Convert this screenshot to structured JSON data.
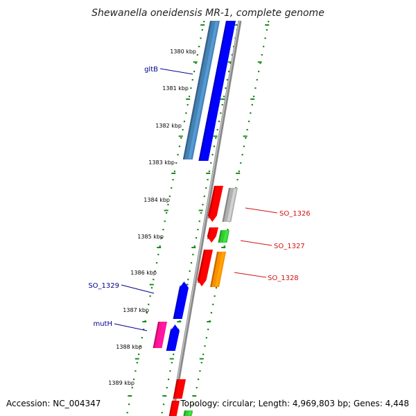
{
  "title": "Shewanella oneidensis MR-1, complete genome",
  "footer": {
    "accession": "Accession: NC_004347",
    "summary": "Topology: circular; Length: 4,969,803 bp; Genes: 4,448"
  },
  "colors": {
    "background": "#ffffff",
    "backbone": "#8a8a8a",
    "tick_dots": "#1f8a1f",
    "forward_label": "#00008b",
    "reverse_label": "#d01010"
  },
  "axis_labels": [
    "1380 kbp",
    "1381 kbp",
    "1382 kbp",
    "1383 kbp",
    "1384 kbp",
    "1385 kbp",
    "1386 kbp",
    "1387 kbp",
    "1388 kbp",
    "1389 kbp"
  ],
  "gene_labels": [
    {
      "name": "gltB",
      "strand": "forward",
      "color": "#00008b"
    },
    {
      "name": "SO_1326",
      "strand": "reverse",
      "color": "#d01010"
    },
    {
      "name": "SO_1327",
      "strand": "reverse",
      "color": "#d01010"
    },
    {
      "name": "SO_1328",
      "strand": "reverse",
      "color": "#d01010"
    },
    {
      "name": "SO_1329",
      "strand": "forward",
      "color": "#00008b"
    },
    {
      "name": "mutH",
      "strand": "forward",
      "color": "#00008b"
    }
  ],
  "features": [
    {
      "name": "gltB-steelblue",
      "color": "#4682b4"
    },
    {
      "name": "gltB-blue",
      "color": "#0000ff"
    },
    {
      "name": "SO_1326-red",
      "color": "#ff0000"
    },
    {
      "name": "SO_1326-grey",
      "color": "#b0b0b0"
    },
    {
      "name": "SO_1327-red",
      "color": "#ff0000"
    },
    {
      "name": "SO_1327-green",
      "color": "#33cc33"
    },
    {
      "name": "SO_1328-red",
      "color": "#ff0000"
    },
    {
      "name": "SO_1328-orange",
      "color": "#ff8c00"
    },
    {
      "name": "SO_1329-blue",
      "color": "#0000ff"
    },
    {
      "name": "mutH-magenta",
      "color": "#ff1493"
    },
    {
      "name": "mutH-blue",
      "color": "#0000ff"
    },
    {
      "name": "bottom-red-1",
      "color": "#ff0000"
    },
    {
      "name": "bottom-red-2",
      "color": "#ff0000"
    },
    {
      "name": "bottom-green",
      "color": "#33cc33"
    }
  ]
}
